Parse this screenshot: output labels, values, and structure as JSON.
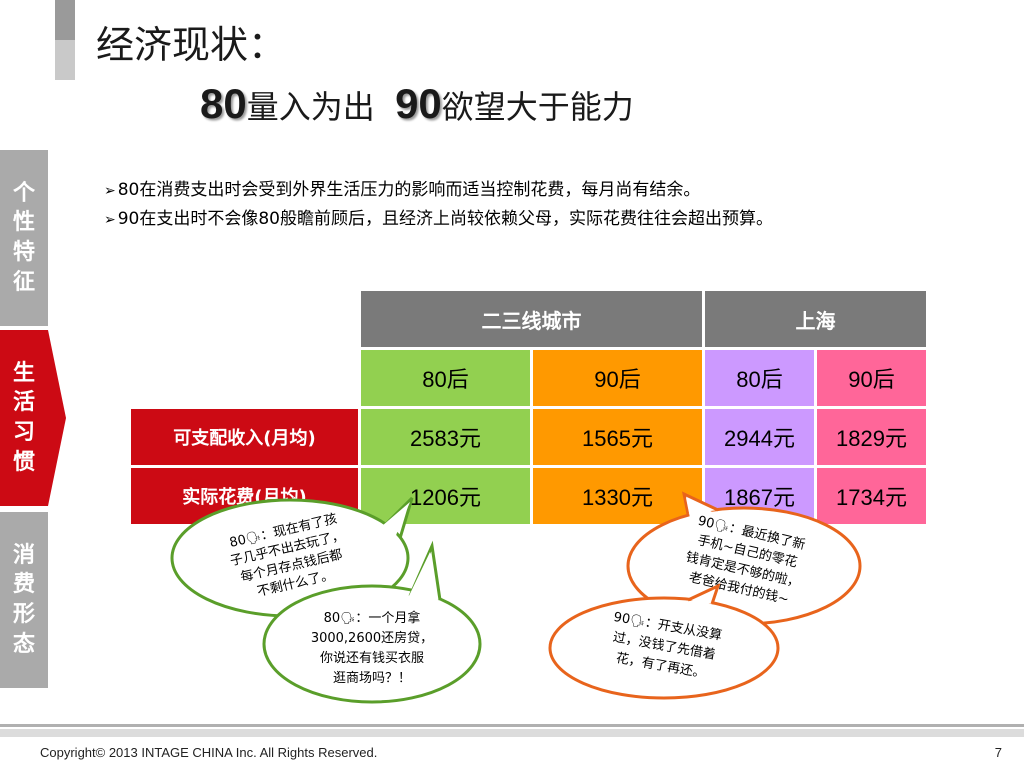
{
  "title": {
    "line1": "经济现状：",
    "num80": "80",
    "text80": "量入为出",
    "num90": "90",
    "text90": "欲望大于能力"
  },
  "sidebar": {
    "tabs": [
      {
        "label": "个性特征",
        "chars": [
          "个",
          "性",
          "特",
          "征"
        ],
        "active": false
      },
      {
        "label": "生活习惯",
        "chars": [
          "生",
          "活",
          "习",
          "惯"
        ],
        "active": true
      },
      {
        "label": "消费形态",
        "chars": [
          "消",
          "费",
          "形",
          "态"
        ],
        "active": false
      }
    ]
  },
  "bullets": [
    "80在消费支出时会受到外界生活压力的影响而适当控制花费，每月尚有结余。",
    "90在支出时不会像80般瞻前顾后，且经济上尚较依赖父母，实际花费往往会超出预算。"
  ],
  "table": {
    "groups": [
      "二三线城市",
      "上海"
    ],
    "subheaders": [
      "80后",
      "90后",
      "80后",
      "90后"
    ],
    "rows": [
      {
        "label": "可支配收入(月均)",
        "cells": [
          "2583元",
          "1565元",
          "2944元",
          "1829元"
        ]
      },
      {
        "label": "实际花费(月均)",
        "cells": [
          "1206元",
          "1330元",
          "1867元",
          "1734元"
        ]
      }
    ]
  },
  "bubbles": {
    "b1": [
      "80",
      "：现在有了孩",
      "子几乎不出去玩了，",
      "每个月存点钱后都",
      "不剩什么了。"
    ],
    "b2": [
      "80",
      "：一个月拿",
      "3000,2600还房贷，",
      "你说还有钱买衣服",
      "逛商场吗？！"
    ],
    "b3": [
      "90",
      "：最近换了新",
      "手机~自己的零花",
      "钱肯定是不够的啦，",
      "老爸给我付的钱~"
    ],
    "b4": [
      "90",
      "：开支从没算",
      "过，没钱了先借着",
      "花，有了再还。"
    ]
  },
  "colors": {
    "green_border": "#5a9e2a",
    "orange_border": "#e8641c",
    "accent_red": "#cc0a14"
  },
  "footer": {
    "copyright": "Copyright© 2013 INTAGE CHINA Inc. All Rights Reserved.",
    "page": "7"
  }
}
